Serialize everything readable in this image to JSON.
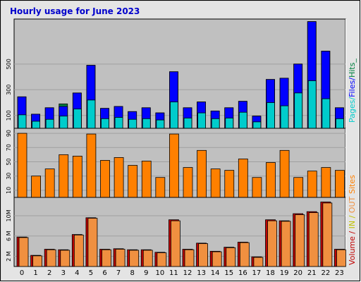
{
  "title": "Hourly usage for June 2023",
  "colors": {
    "title": "#0000cc",
    "pages": "#00cccc",
    "files": "#0000ff",
    "hits": "#008040",
    "visits": "#f09040",
    "sites": "#ff8000",
    "kbytes": "#c00000",
    "kbin": "#c0c000",
    "kbout": "#f09040",
    "panel": "#c0c0c0",
    "frame": "#e0e0e0"
  },
  "legend": {
    "top": {
      "pages": "Pages",
      "sep1": "/",
      "files": "Files",
      "sep2": "/",
      "hits": "Hits_"
    },
    "middle": {
      "sites": "Sites"
    },
    "bottom": {
      "volume": "Volume",
      "sep1": " / ",
      "in": "IN",
      "sep2": " / ",
      "out": "OUT"
    }
  },
  "chart_data": [
    {
      "type": "bar",
      "title": "Hourly usage for June 2023",
      "categories": [
        "0",
        "1",
        "2",
        "3",
        "4",
        "5",
        "6",
        "7",
        "8",
        "9",
        "10",
        "11",
        "12",
        "13",
        "14",
        "15",
        "16",
        "17",
        "18",
        "19",
        "20",
        "21",
        "22",
        "23"
      ],
      "y_ticks": [
        "100",
        "300",
        "500"
      ],
      "ylim": [
        0,
        850
      ],
      "series": [
        {
          "name": "Hits",
          "values": [
            245,
            110,
            160,
            190,
            275,
            490,
            155,
            170,
            130,
            160,
            120,
            440,
            160,
            205,
            135,
            160,
            210,
            95,
            380,
            390,
            500,
            830,
            600,
            160
          ]
        },
        {
          "name": "Files",
          "values": [
            245,
            110,
            160,
            170,
            275,
            490,
            155,
            170,
            130,
            160,
            120,
            440,
            160,
            205,
            135,
            160,
            210,
            95,
            380,
            390,
            500,
            830,
            600,
            160
          ]
        },
        {
          "name": "Pages",
          "values": [
            105,
            55,
            70,
            95,
            150,
            220,
            75,
            85,
            70,
            75,
            65,
            205,
            80,
            120,
            75,
            80,
            125,
            50,
            200,
            175,
            275,
            370,
            230,
            75
          ]
        }
      ]
    },
    {
      "type": "bar",
      "categories": [
        "0",
        "1",
        "2",
        "3",
        "4",
        "5",
        "6",
        "7",
        "8",
        "9",
        "10",
        "11",
        "12",
        "13",
        "14",
        "15",
        "16",
        "17",
        "18",
        "19",
        "20",
        "21",
        "22",
        "23"
      ],
      "y_ticks": [
        "10",
        "30",
        "50",
        "70",
        "90"
      ],
      "ylim": [
        0,
        97
      ],
      "series": [
        {
          "name": "Sites",
          "values": [
            90,
            30,
            40,
            60,
            58,
            89,
            52,
            56,
            45,
            51,
            28,
            89,
            42,
            66,
            40,
            38,
            54,
            28,
            49,
            66,
            28,
            37,
            42,
            38
          ]
        }
      ]
    },
    {
      "type": "bar",
      "categories": [
        "0",
        "1",
        "2",
        "3",
        "4",
        "5",
        "6",
        "7",
        "8",
        "9",
        "10",
        "11",
        "12",
        "13",
        "14",
        "15",
        "16",
        "17",
        "18",
        "19",
        "20",
        "21",
        "22",
        "23"
      ],
      "y_ticks": [
        "2 M",
        "6 M",
        "10M"
      ],
      "ylim": [
        0,
        13.6
      ],
      "series": [
        {
          "name": "Volume",
          "values": [
            5.8,
            2.2,
            3.4,
            3.3,
            6.3,
            9.6,
            3.4,
            3.5,
            3.3,
            3.3,
            2.8,
            9.2,
            3.4,
            4.6,
            3.0,
            3.8,
            4.8,
            1.9,
            9.2,
            9.0,
            10.4,
            10.8,
            12.7,
            3.4
          ]
        },
        {
          "name": "OUT",
          "values": [
            5.7,
            2.1,
            3.3,
            3.2,
            6.2,
            9.5,
            3.3,
            3.4,
            3.2,
            3.2,
            2.7,
            9.0,
            3.3,
            4.5,
            2.9,
            3.7,
            4.7,
            1.8,
            9.0,
            8.9,
            10.2,
            10.6,
            12.5,
            3.3
          ]
        }
      ]
    }
  ]
}
